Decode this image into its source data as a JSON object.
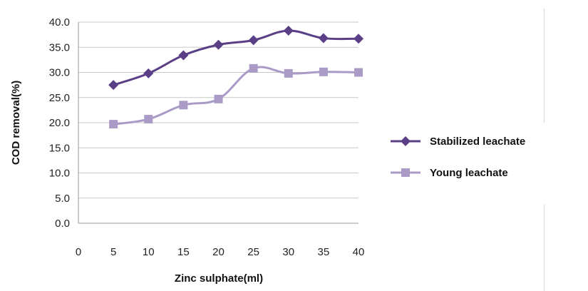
{
  "chart_data": {
    "type": "line",
    "xlabel": "Zinc sulphate(ml)",
    "ylabel": "COD removal(%)",
    "x": [
      5,
      10,
      15,
      20,
      25,
      30,
      35,
      40
    ],
    "x_ticks": [
      "0",
      "5",
      "10",
      "15",
      "20",
      "25",
      "30",
      "35",
      "40"
    ],
    "y_ticks": [
      "0.0",
      "5.0",
      "10.0",
      "15.0",
      "20.0",
      "25.0",
      "30.0",
      "35.0",
      "40.0"
    ],
    "xlim": [
      0,
      40
    ],
    "ylim": [
      0,
      40
    ],
    "grid": "horizontal",
    "legend_position": "right",
    "series": [
      {
        "name": "Stabilized leachate",
        "marker": "diamond",
        "color": "#5b3f86",
        "values": [
          27.5,
          29.8,
          33.4,
          35.5,
          36.4,
          38.3,
          36.8,
          36.7
        ]
      },
      {
        "name": "Young leachate",
        "marker": "square",
        "color": "#a99bc6",
        "values": [
          19.7,
          20.7,
          23.5,
          24.7,
          30.8,
          29.8,
          30.1,
          30.0
        ]
      }
    ]
  }
}
